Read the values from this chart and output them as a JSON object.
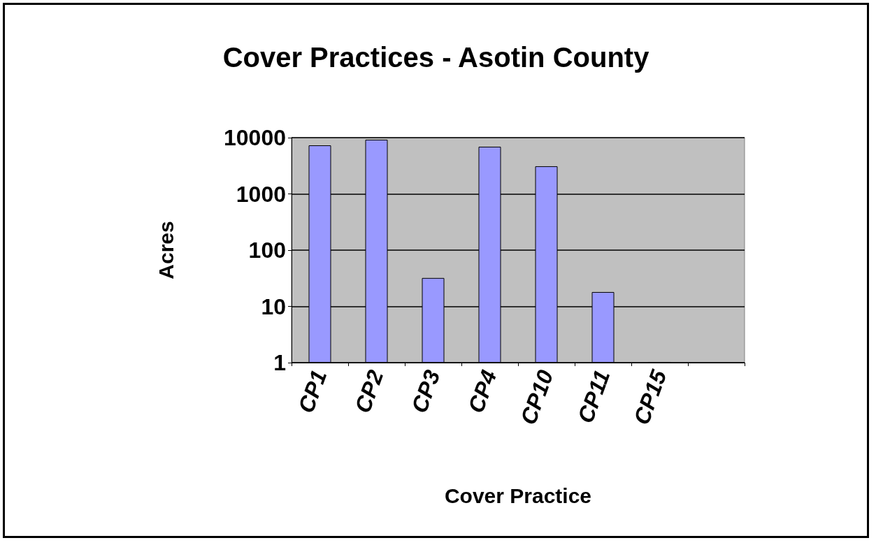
{
  "chart_data": {
    "type": "bar",
    "title": "Cover Practices - Asotin County",
    "xlabel": "Cover Practice",
    "ylabel": "Acres",
    "categories": [
      "CP1",
      "CP2",
      "CP3",
      "CP4",
      "CP10",
      "CP11",
      "CP15",
      null
    ],
    "values": [
      7300,
      9200,
      32,
      6900,
      3100,
      18,
      1,
      null
    ],
    "color": "#9999ff",
    "log": true,
    "ylim": [
      1,
      10000
    ],
    "yticks": [
      1,
      10,
      100,
      1000,
      10000
    ],
    "grid": "y"
  }
}
